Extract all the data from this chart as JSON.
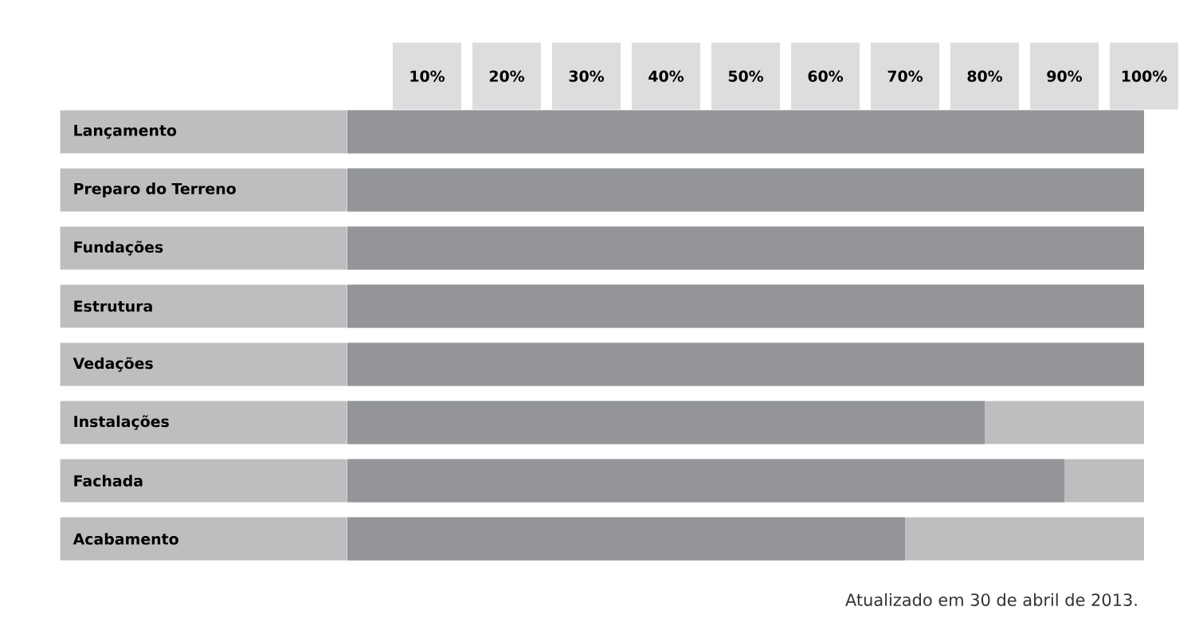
{
  "chart_data": {
    "type": "bar",
    "orientation": "horizontal",
    "categories": [
      "Lançamento",
      "Preparo do Terreno",
      "Fundações",
      "Estrutura",
      "Vedações",
      "Instalações",
      "Fachada",
      "Acabamento"
    ],
    "values": [
      100,
      100,
      100,
      100,
      100,
      80,
      90,
      70
    ],
    "color": "#939598",
    "xlim": [
      0,
      100
    ],
    "xticks": [
      {
        "value": 10,
        "label": "10%"
      },
      {
        "value": 20,
        "label": "20%"
      },
      {
        "value": 30,
        "label": "30%"
      },
      {
        "value": 40,
        "label": "40%"
      },
      {
        "value": 50,
        "label": "50%"
      },
      {
        "value": 60,
        "label": "60%"
      },
      {
        "value": 70,
        "label": "70%"
      },
      {
        "value": 80,
        "label": "80%"
      },
      {
        "value": 90,
        "label": "90%"
      },
      {
        "value": 100,
        "label": "100%"
      }
    ],
    "annotations": [
      "Atualizado em 30 de abril de 2013."
    ]
  }
}
